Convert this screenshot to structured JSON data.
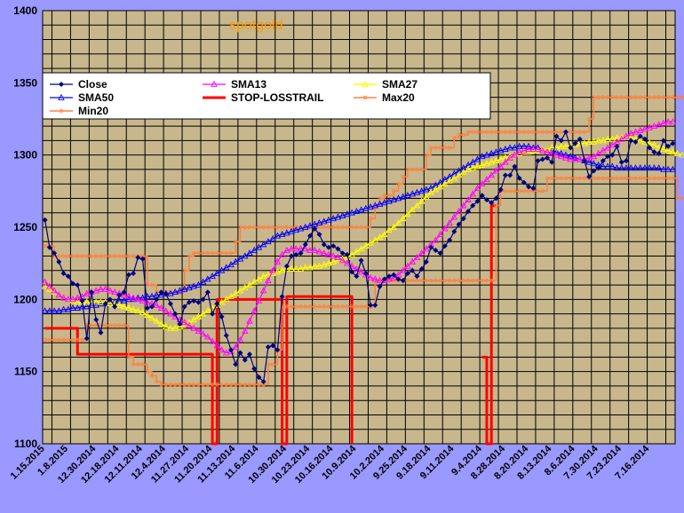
{
  "colors": {
    "background": "#9999ff",
    "plot_area": "#c8b78c",
    "gridline": "#000000",
    "close": "#000080",
    "sma13": "#ff00ff",
    "sma27": "#ffff00",
    "sma50": "#0000ff",
    "stop": "#ff0000",
    "max20": "#ff8040",
    "min20": "#ff8040",
    "title": "#ff9900"
  },
  "chart_data": {
    "type": "line",
    "title": "spotgold",
    "xlabel": "",
    "ylabel": "",
    "ylim": [
      1100,
      1400
    ],
    "yticks": [
      1100,
      1150,
      1200,
      1250,
      1300,
      1350,
      1400
    ],
    "grid": true,
    "legend_position": "top",
    "n_points": 136,
    "x_labels": [
      "1.15.2015",
      "1.8.2015",
      "12.30.2014",
      "12.18.2014",
      "12.11.2014",
      "12.4.2014",
      "11.27.2014",
      "11.20.2014",
      "11.13.2014",
      "11.6.2014",
      "10.30.2014",
      "10.23.2014",
      "10.16.2014",
      "10.9.2014",
      "10.2.2014",
      "9.25.2014",
      "9.18.2014",
      "9.11.2014",
      "9.4.2014",
      "8.28.2014",
      "8.20.2014",
      "8.13.2014",
      "8.6.2014",
      "7.30.2014",
      "7.23.2014",
      "7.16.2014"
    ],
    "x_label_index": [
      0,
      5,
      11,
      16,
      21,
      26,
      31,
      36,
      41,
      46,
      52,
      57,
      62,
      67,
      73,
      78,
      83,
      88,
      94,
      99,
      104,
      109,
      114,
      119,
      124,
      130
    ],
    "series": [
      {
        "name": "Close",
        "values": [
          1255,
          1236,
          1232,
          1226,
          1218,
          1216,
          1211,
          1210,
          1199,
          1173,
          1205,
          1186,
          1177,
          1197,
          1200,
          1195,
          1203,
          1205,
          1217,
          1218,
          1229,
          1228,
          1194,
          1195,
          1200,
          1205,
          1204,
          1197,
          1190,
          1183,
          1195,
          1198,
          1199,
          1198,
          1200,
          1205,
          1190,
          1197,
          1188,
          1175,
          1165,
          1155,
          1163,
          1158,
          1162,
          1152,
          1146,
          1143,
          1167,
          1168,
          1165,
          1202,
          1223,
          1230,
          1231,
          1232,
          1238,
          1244,
          1249,
          1245,
          1238,
          1236,
          1237,
          1235,
          1232,
          1231,
          1219,
          1216,
          1227,
          1218,
          1196,
          1196,
          1209,
          1214,
          1216,
          1217,
          1214,
          1213,
          1218,
          1220,
          1216,
          1221,
          1226,
          1236,
          1234,
          1232,
          1237,
          1241,
          1247,
          1252,
          1256,
          1261,
          1265,
          1268,
          1272,
          1269,
          1267,
          1270,
          1276,
          1286,
          1286,
          1292,
          1284,
          1281,
          1278,
          1277,
          1296,
          1297,
          1298,
          1295,
          1313,
          1310,
          1316,
          1305,
          1308,
          1311,
          1296,
          1285,
          1289,
          1291,
          1296,
          1299,
          1300,
          1306,
          1295,
          1296,
          1310,
          1309,
          1313,
          1311,
          1305,
          1302,
          1301,
          1310,
          1306,
          1308
        ]
      },
      {
        "name": "SMA13",
        "values": [
          1212,
          1209,
          1206,
          1203,
          1201,
          1200,
          1200,
          1201,
          1202,
          1204,
          1205,
          1206,
          1207,
          1207,
          1206,
          1205,
          1204,
          1203,
          1202,
          1201,
          1200,
          1199,
          1198,
          1197,
          1196,
          1194,
          1192,
          1190,
          1188,
          1186,
          1184,
          1182,
          1180,
          1178,
          1176,
          1174,
          1171,
          1168,
          1165,
          1163,
          1164,
          1167,
          1172,
          1178,
          1185,
          1192,
          1199,
          1206,
          1213,
          1220,
          1226,
          1231,
          1234,
          1235,
          1235,
          1235,
          1235,
          1234,
          1234,
          1233,
          1232,
          1231,
          1230,
          1229,
          1227,
          1225,
          1223,
          1221,
          1219,
          1217,
          1215,
          1214,
          1213,
          1213,
          1214,
          1215,
          1217,
          1220,
          1223,
          1226,
          1229,
          1232,
          1235,
          1238,
          1241,
          1245,
          1249,
          1253,
          1257,
          1261,
          1265,
          1269,
          1273,
          1277,
          1280,
          1283,
          1286,
          1289,
          1292,
          1295,
          1298,
          1300,
          1302,
          1303,
          1304,
          1304,
          1304,
          1303,
          1302,
          1301,
          1300,
          1299,
          1298,
          1297,
          1297,
          1297,
          1297,
          1298,
          1299,
          1301,
          1303,
          1305,
          1307,
          1309,
          1311,
          1313,
          1315,
          1316,
          1317,
          1318,
          1319,
          1320,
          1321,
          1322,
          1323,
          1323
        ]
      },
      {
        "name": "SMA27",
        "values": [
          1209,
          1207,
          1205,
          1203,
          1201,
          1200,
          1199,
          1198,
          1198,
          1198,
          1198,
          1198,
          1198,
          1198,
          1197,
          1197,
          1196,
          1195,
          1194,
          1193,
          1192,
          1191,
          1189,
          1187,
          1185,
          1183,
          1181,
          1180,
          1180,
          1181,
          1182,
          1184,
          1186,
          1188,
          1190,
          1192,
          1194,
          1196,
          1198,
          1200,
          1202,
          1204,
          1206,
          1208,
          1210,
          1212,
          1214,
          1216,
          1217,
          1218,
          1219,
          1220,
          1221,
          1221,
          1221,
          1221,
          1222,
          1222,
          1223,
          1223,
          1224,
          1225,
          1226,
          1227,
          1228,
          1229,
          1231,
          1233,
          1235,
          1237,
          1239,
          1241,
          1243,
          1245,
          1248,
          1250,
          1253,
          1256,
          1259,
          1262,
          1265,
          1268,
          1271,
          1274,
          1276,
          1278,
          1280,
          1282,
          1284,
          1286,
          1288,
          1290,
          1291,
          1292,
          1293,
          1294,
          1295,
          1296,
          1297,
          1298,
          1299,
          1300,
          1301,
          1302,
          1302,
          1303,
          1303,
          1304,
          1304,
          1305,
          1305,
          1306,
          1306,
          1307,
          1307,
          1308,
          1308,
          1309,
          1309,
          1310,
          1310,
          1311,
          1311,
          1312,
          1312,
          1313,
          1312,
          1311,
          1310,
          1309,
          1308,
          1307,
          1305,
          1304,
          1303,
          1302,
          1301,
          1300
        ]
      },
      {
        "name": "SMA50",
        "values": [
          1192,
          1192,
          1192,
          1192,
          1193,
          1193,
          1194,
          1194,
          1195,
          1195,
          1196,
          1196,
          1197,
          1197,
          1198,
          1198,
          1199,
          1199,
          1200,
          1200,
          1201,
          1201,
          1202,
          1202,
          1203,
          1203,
          1204,
          1204,
          1205,
          1206,
          1207,
          1208,
          1209,
          1210,
          1212,
          1214,
          1216,
          1218,
          1220,
          1222,
          1224,
          1226,
          1228,
          1230,
          1232,
          1234,
          1236,
          1238,
          1240,
          1242,
          1244,
          1245,
          1246,
          1247,
          1248,
          1249,
          1250,
          1251,
          1252,
          1253,
          1254,
          1255,
          1256,
          1257,
          1258,
          1259,
          1260,
          1261,
          1262,
          1263,
          1264,
          1265,
          1266,
          1267,
          1268,
          1269,
          1270,
          1271,
          1272,
          1273,
          1274,
          1275,
          1276,
          1277,
          1279,
          1281,
          1283,
          1285,
          1287,
          1289,
          1291,
          1293,
          1295,
          1297,
          1299,
          1300,
          1301,
          1302,
          1303,
          1304,
          1305,
          1305,
          1306,
          1306,
          1306,
          1305,
          1305,
          1304,
          1304,
          1303,
          1302,
          1301,
          1300,
          1299,
          1298,
          1297,
          1296,
          1295,
          1294,
          1293,
          1292,
          1292,
          1292,
          1291,
          1291,
          1291,
          1291,
          1291,
          1291,
          1291,
          1291,
          1291,
          1291,
          1290,
          1290,
          1290
        ]
      },
      {
        "name": "Max20",
        "values": [
          1237,
          1237,
          1230,
          1230,
          1230,
          1230,
          1230,
          1230,
          1230,
          1230,
          1230,
          1230,
          1230,
          1230,
          1230,
          1230,
          1230,
          1230,
          1230,
          1230,
          1230,
          1230,
          1210,
          1210,
          1205,
          1205,
          1205,
          1205,
          1205,
          1205,
          1220,
          1230,
          1232,
          1232,
          1232,
          1232,
          1232,
          1232,
          1232,
          1232,
          1232,
          1240,
          1250,
          1250,
          1250,
          1250,
          1250,
          1250,
          1250,
          1250,
          1250,
          1250,
          1250,
          1250,
          1250,
          1250,
          1250,
          1250,
          1250,
          1250,
          1250,
          1250,
          1250,
          1250,
          1250,
          1250,
          1250,
          1250,
          1250,
          1250,
          1256,
          1265,
          1270,
          1272,
          1272,
          1275,
          1280,
          1285,
          1290,
          1290,
          1290,
          1290,
          1300,
          1305,
          1305,
          1305,
          1305,
          1305,
          1312,
          1314,
          1314,
          1316,
          1316,
          1316,
          1316,
          1316,
          1316,
          1316,
          1316,
          1316,
          1316,
          1316,
          1316,
          1316,
          1316,
          1316,
          1316,
          1316,
          1316,
          1316,
          1316,
          1316,
          1316,
          1316,
          1316,
          1316,
          1316,
          1325,
          1340,
          1340,
          1340,
          1340,
          1340,
          1340,
          1340,
          1340,
          1340,
          1340,
          1340,
          1340,
          1340,
          1340,
          1340,
          1340,
          1340,
          1340,
          1340,
          1340,
          1340,
          1340
        ]
      },
      {
        "name": "Min20",
        "values": [
          1172,
          1172,
          1172,
          1172,
          1172,
          1172,
          1172,
          1172,
          1172,
          1182,
          1182,
          1182,
          1182,
          1182,
          1182,
          1182,
          1182,
          1182,
          1160,
          1155,
          1155,
          1155,
          1150,
          1147,
          1143,
          1141,
          1141,
          1141,
          1141,
          1141,
          1141,
          1141,
          1141,
          1141,
          1141,
          1141,
          1141,
          1141,
          1141,
          1141,
          1141,
          1141,
          1141,
          1141,
          1141,
          1141,
          1141,
          1141,
          1155,
          1155,
          1165,
          1195,
          1195,
          1195,
          1195,
          1195,
          1195,
          1195,
          1195,
          1195,
          1195,
          1195,
          1195,
          1195,
          1195,
          1195,
          1195,
          1195,
          1195,
          1195,
          1195,
          1213,
          1213,
          1213,
          1213,
          1213,
          1213,
          1213,
          1213,
          1213,
          1213,
          1213,
          1213,
          1213,
          1213,
          1213,
          1213,
          1213,
          1213,
          1213,
          1213,
          1213,
          1213,
          1213,
          1213,
          1213,
          1213,
          1265,
          1275,
          1275,
          1275,
          1275,
          1275,
          1275,
          1275,
          1275,
          1275,
          1275,
          1284,
          1284,
          1284,
          1284,
          1284,
          1284,
          1284,
          1284,
          1284,
          1284,
          1284,
          1284,
          1284,
          1284,
          1284,
          1284,
          1284,
          1284,
          1284,
          1284,
          1284,
          1284,
          1284,
          1284,
          1284,
          1284,
          1284,
          1284,
          1270,
          1270
        ]
      },
      {
        "name": "STOP-LOSSTRAIL",
        "values": [
          1180,
          1180,
          1180,
          1180,
          1180,
          1180,
          1180,
          1162,
          1162,
          1162,
          1162,
          1162,
          1162,
          1162,
          1162,
          1162,
          1162,
          1162,
          1162,
          1162,
          1162,
          1162,
          1162,
          1162,
          1162,
          1162,
          1162,
          1162,
          1162,
          1162,
          1162,
          1162,
          1162,
          1162,
          1162,
          1162,
          1100,
          1200,
          1200,
          1200,
          1200,
          1200,
          1200,
          1200,
          1200,
          1200,
          1200,
          1200,
          1200,
          1200,
          1200,
          1100,
          1202,
          1202,
          1202,
          1202,
          1202,
          1202,
          1202,
          1202,
          1202,
          1202,
          1202,
          1202,
          1202,
          1202,
          1100,
          null,
          null,
          null,
          null,
          null,
          null,
          null,
          null,
          null,
          null,
          null,
          null,
          null,
          null,
          null,
          null,
          null,
          null,
          null,
          null,
          null,
          null,
          null,
          null,
          null,
          null,
          null,
          1160,
          1100,
          1265,
          1265,
          null,
          null,
          null,
          null,
          null,
          null,
          null,
          null,
          null,
          null,
          null,
          null,
          null,
          null,
          null,
          null,
          null,
          null,
          null,
          null,
          null,
          null,
          null,
          null,
          null,
          null,
          null,
          null,
          null,
          null,
          null,
          null,
          null,
          null,
          null,
          null,
          null,
          null,
          null,
          null,
          null,
          null
        ]
      }
    ]
  }
}
